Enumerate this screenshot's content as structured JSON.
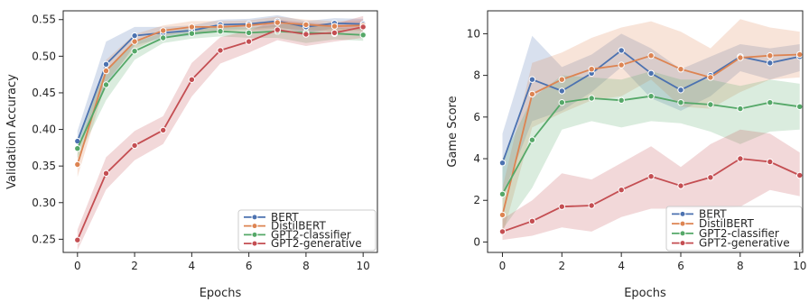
{
  "chart_data": [
    {
      "type": "line",
      "xlabel": "Epochs",
      "ylabel": "Validation Accuracy",
      "xlim": [
        -0.5,
        10.5
      ],
      "ylim": [
        0.232,
        0.562
      ],
      "xticks": [
        0,
        2,
        4,
        6,
        8,
        10
      ],
      "yticks": [
        0.25,
        0.3,
        0.35,
        0.4,
        0.45,
        0.5,
        0.55
      ],
      "ytick_labels": [
        "0.25",
        "0.30",
        "0.35",
        "0.40",
        "0.45",
        "0.50",
        "0.55"
      ],
      "legend_position": "lower-right",
      "grid": false,
      "x": [
        0,
        1,
        2,
        3,
        4,
        5,
        6,
        7,
        8,
        9,
        10
      ],
      "series": [
        {
          "name": "BERT",
          "color": "#4c72b0",
          "values": [
            0.384,
            0.489,
            0.528,
            0.532,
            0.535,
            0.543,
            0.544,
            0.548,
            0.54,
            0.545,
            0.544
          ],
          "lower": [
            0.37,
            0.46,
            0.515,
            0.525,
            0.528,
            0.536,
            0.537,
            0.54,
            0.532,
            0.538,
            0.536
          ],
          "upper": [
            0.398,
            0.52,
            0.54,
            0.54,
            0.542,
            0.55,
            0.551,
            0.556,
            0.548,
            0.552,
            0.551
          ]
        },
        {
          "name": "DistilBERT",
          "color": "#dd8452",
          "values": [
            0.352,
            0.48,
            0.52,
            0.535,
            0.54,
            0.54,
            0.542,
            0.546,
            0.543,
            0.541,
            0.542
          ],
          "lower": [
            0.335,
            0.465,
            0.51,
            0.528,
            0.533,
            0.533,
            0.535,
            0.538,
            0.536,
            0.534,
            0.535
          ],
          "upper": [
            0.368,
            0.495,
            0.53,
            0.542,
            0.548,
            0.548,
            0.549,
            0.554,
            0.55,
            0.548,
            0.549
          ]
        },
        {
          "name": "GPT2-classifier",
          "color": "#55a868",
          "values": [
            0.374,
            0.461,
            0.507,
            0.525,
            0.531,
            0.534,
            0.532,
            0.534,
            0.532,
            0.531,
            0.529
          ],
          "lower": [
            0.36,
            0.44,
            0.495,
            0.518,
            0.524,
            0.527,
            0.525,
            0.525,
            0.518,
            0.523,
            0.521
          ],
          "upper": [
            0.388,
            0.482,
            0.519,
            0.532,
            0.538,
            0.541,
            0.539,
            0.543,
            0.546,
            0.539,
            0.537
          ]
        },
        {
          "name": "GPT2-generative",
          "color": "#c44e52",
          "values": [
            0.249,
            0.34,
            0.378,
            0.399,
            0.468,
            0.508,
            0.52,
            0.536,
            0.53,
            0.532,
            0.54
          ],
          "lower": [
            0.235,
            0.318,
            0.358,
            0.38,
            0.445,
            0.49,
            0.505,
            0.522,
            0.514,
            0.52,
            0.525
          ],
          "upper": [
            0.263,
            0.362,
            0.398,
            0.418,
            0.491,
            0.526,
            0.535,
            0.55,
            0.546,
            0.544,
            0.555
          ]
        }
      ]
    },
    {
      "type": "line",
      "xlabel": "Epochs",
      "ylabel": "Game Score",
      "xlim": [
        -0.5,
        10.1
      ],
      "ylim": [
        -0.5,
        11.1
      ],
      "xticks": [
        0,
        2,
        4,
        6,
        8,
        10
      ],
      "yticks": [
        0,
        2,
        4,
        6,
        8,
        10
      ],
      "ytick_labels": [
        "0",
        "2",
        "4",
        "6",
        "8",
        "10"
      ],
      "legend_position": "lower-right",
      "grid": false,
      "x": [
        0,
        1,
        2,
        3,
        4,
        5,
        6,
        7,
        8,
        9,
        10
      ],
      "series": [
        {
          "name": "BERT",
          "color": "#4c72b0",
          "values": [
            3.8,
            7.8,
            7.25,
            8.1,
            9.2,
            8.1,
            7.3,
            8.0,
            8.9,
            8.6,
            8.9
          ],
          "lower": [
            2.2,
            5.8,
            6.3,
            7.2,
            8.4,
            6.9,
            6.3,
            7.0,
            8.2,
            7.8,
            8.2
          ],
          "upper": [
            5.2,
            9.9,
            8.4,
            9.0,
            10.0,
            9.3,
            8.3,
            8.9,
            9.5,
            9.3,
            9.5
          ]
        },
        {
          "name": "DistilBERT",
          "color": "#dd8452",
          "values": [
            1.3,
            7.1,
            7.8,
            8.3,
            8.5,
            8.95,
            8.3,
            7.9,
            8.85,
            8.95,
            9.0
          ],
          "lower": [
            0.3,
            5.5,
            6.2,
            6.8,
            7.0,
            7.8,
            6.5,
            6.4,
            7.2,
            7.8,
            7.9
          ],
          "upper": [
            2.6,
            8.6,
            9.1,
            9.8,
            10.3,
            10.6,
            10.1,
            9.3,
            10.7,
            10.3,
            10.1
          ]
        },
        {
          "name": "GPT2-classifier",
          "color": "#55a868",
          "values": [
            2.3,
            4.9,
            6.7,
            6.9,
            6.8,
            7.0,
            6.7,
            6.6,
            6.4,
            6.7,
            6.5
          ],
          "lower": [
            0.6,
            2.6,
            5.4,
            5.8,
            5.5,
            5.8,
            5.7,
            5.3,
            4.7,
            5.3,
            5.4
          ],
          "upper": [
            4.0,
            6.9,
            8.0,
            7.9,
            7.8,
            8.2,
            7.8,
            7.8,
            7.5,
            7.8,
            7.6
          ]
        },
        {
          "name": "GPT2-generative",
          "color": "#c44e52",
          "values": [
            0.5,
            1.0,
            1.7,
            1.75,
            2.5,
            3.15,
            2.7,
            3.1,
            4.0,
            3.85,
            3.2
          ],
          "lower": [
            0.1,
            0.3,
            0.7,
            0.5,
            1.2,
            1.6,
            1.6,
            1.5,
            1.7,
            2.5,
            2.2
          ],
          "upper": [
            1.1,
            2.0,
            3.3,
            3.0,
            3.8,
            4.6,
            3.6,
            4.7,
            5.4,
            5.2,
            4.3
          ]
        }
      ]
    }
  ]
}
